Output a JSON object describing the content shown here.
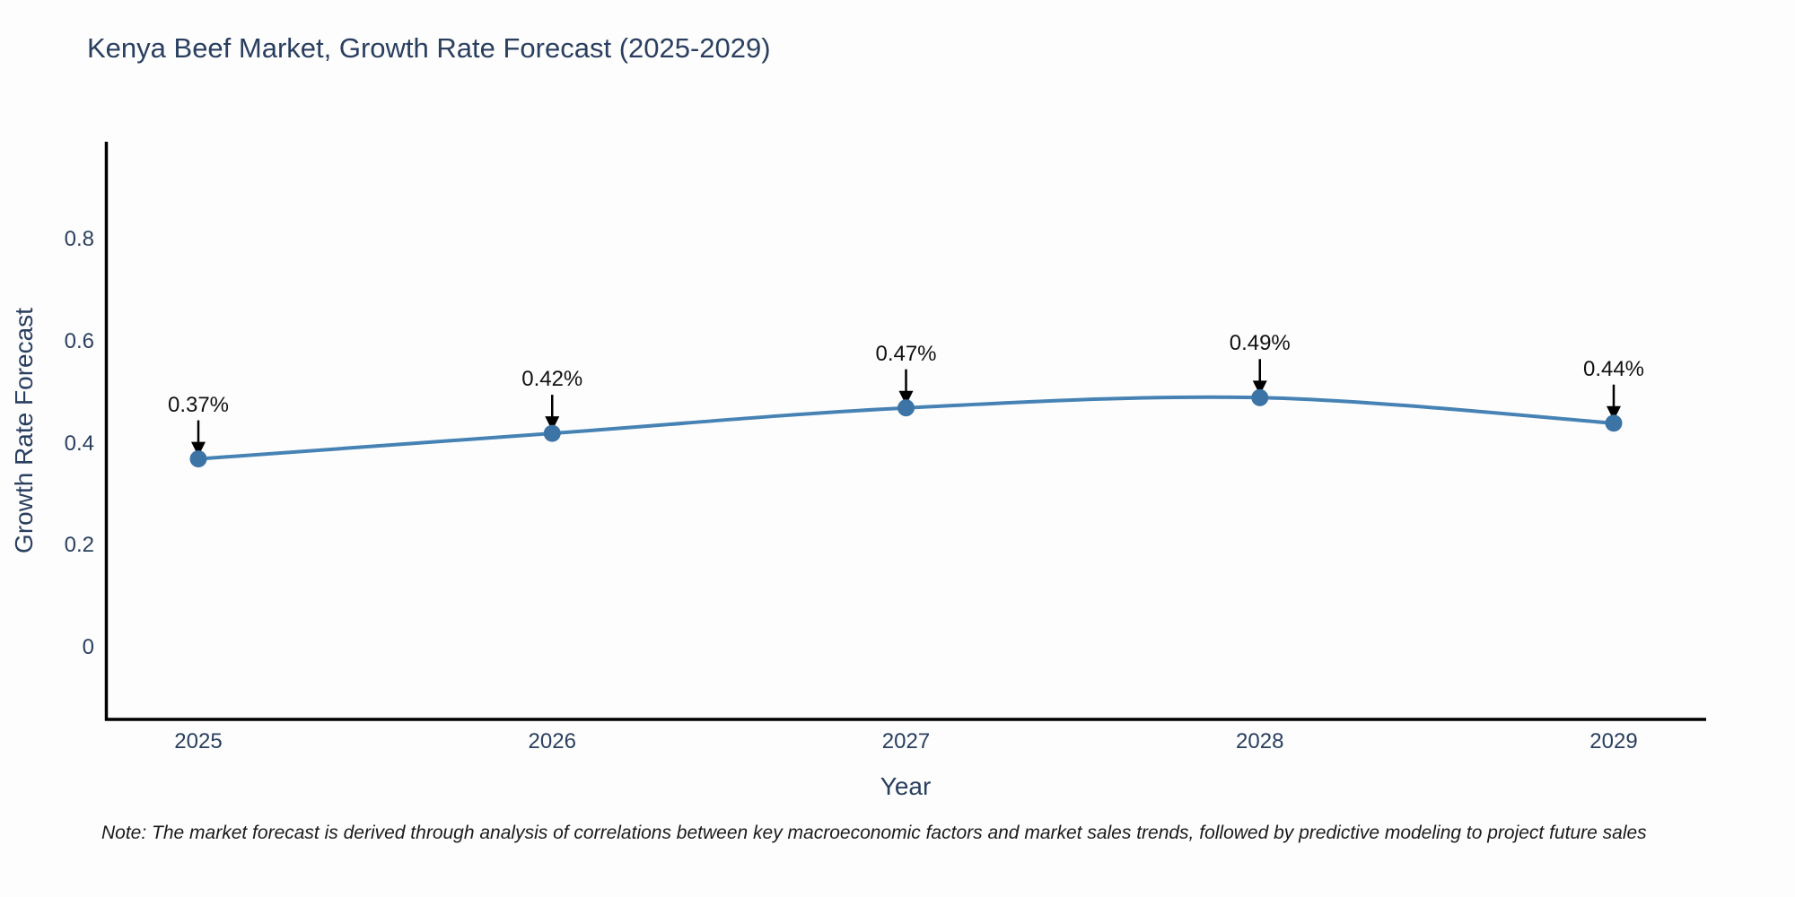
{
  "title": "Kenya Beef Market, Growth Rate Forecast (2025-2029)",
  "footnote": "Note: The market forecast is derived through analysis of correlations between key macroeconomic factors and market sales trends, followed by predictive modeling to project future sales",
  "chart_data": {
    "type": "line",
    "title": "Kenya Beef Market, Growth Rate Forecast (2025-2029)",
    "xlabel": "Year",
    "ylabel": "Growth Rate Forecast",
    "x": [
      "2025",
      "2026",
      "2027",
      "2028",
      "2029"
    ],
    "values": [
      0.37,
      0.42,
      0.47,
      0.49,
      0.44
    ],
    "point_labels": [
      "0.37%",
      "0.42%",
      "0.47%",
      "0.49%",
      "0.44%"
    ],
    "ytick_labels": [
      "0",
      "0.2",
      "0.4",
      "0.6",
      "0.8"
    ],
    "ytick_values": [
      0,
      0.2,
      0.4,
      0.6,
      0.8
    ],
    "ylim": [
      -0.14,
      0.99
    ],
    "grid": false,
    "legend": "none",
    "line_shape": "spline",
    "annotation_arrows": true,
    "colors": {
      "line": "#4682b4",
      "marker": "#3c74a6",
      "axis": "#000000",
      "text": "#2a3f5f",
      "annotation": "#111111"
    }
  }
}
